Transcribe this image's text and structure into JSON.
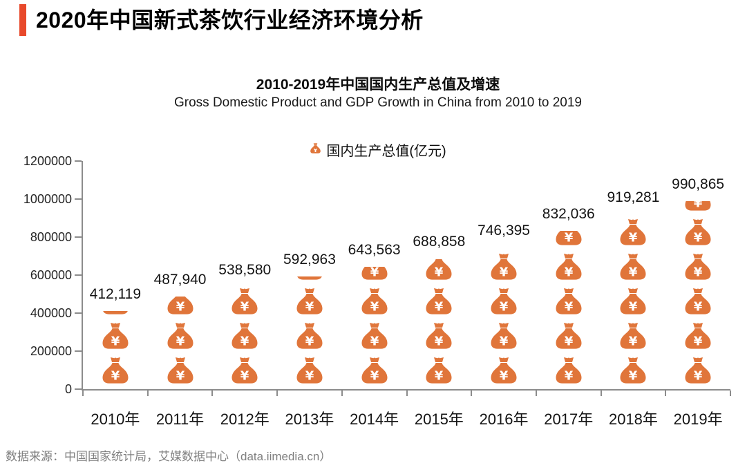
{
  "page": {
    "header": {
      "title": "2020年中国新式茶饮行业经济环境分析",
      "accent_color": "#E8492B"
    },
    "source_note": "数据来源：中国国家统计局，艾媒数据中心（data.iimedia.cn）"
  },
  "chart_data": {
    "type": "bar",
    "variant": "pictorial-stacked-money-bag-icons",
    "title": "2010-2019年中国国内生产总值及增速",
    "subtitle": "Gross Domestic Product and GDP Growth in China from 2010 to 2019",
    "legend": {
      "icon": "money-bag-icon",
      "label": "国内生产总值(亿元)",
      "position": "top-center"
    },
    "categories": [
      "2010年",
      "2011年",
      "2012年",
      "2013年",
      "2014年",
      "2015年",
      "2016年",
      "2017年",
      "2018年",
      "2019年"
    ],
    "values": [
      412119,
      487940,
      538580,
      592963,
      643563,
      688858,
      746395,
      832036,
      919281,
      990865
    ],
    "value_labels": [
      "412,119",
      "487,940",
      "538,580",
      "592,963",
      "643,563",
      "688,858",
      "746,395",
      "832,036",
      "919,281",
      "990,865"
    ],
    "unit": "亿元",
    "ylim": [
      0,
      1200000
    ],
    "y_ticks": [
      0,
      200000,
      400000,
      600000,
      800000,
      1000000,
      1200000
    ],
    "y_tick_labels": [
      "0",
      "200000",
      "400000",
      "600000",
      "800000",
      "1000000",
      "1200000"
    ],
    "grid": false,
    "legend_series_color": "#E0753A",
    "axis_color": "#8C8C8C",
    "yen_glyph": "¥"
  }
}
